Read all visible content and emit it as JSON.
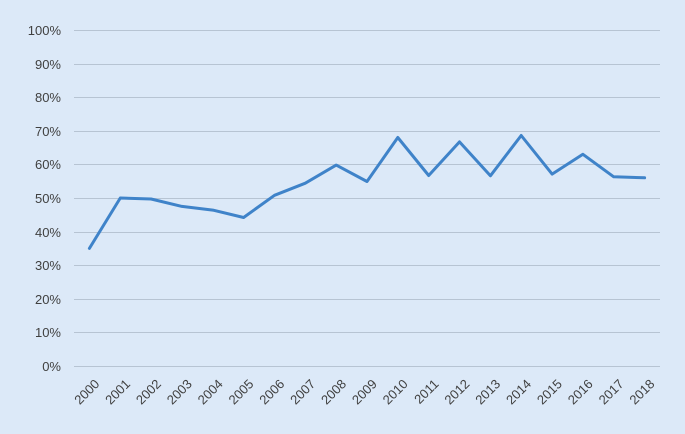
{
  "chart_data": {
    "type": "line",
    "x": [
      "2000",
      "2001",
      "2002",
      "2003",
      "2004",
      "2005",
      "2006",
      "2007",
      "2008",
      "2009",
      "2010",
      "2011",
      "2012",
      "2013",
      "2014",
      "2015",
      "2016",
      "2017",
      "2018"
    ],
    "series": [
      {
        "values": [
          35,
          50,
          49.7,
          47.5,
          46.4,
          44.2,
          50.8,
          54.4,
          59.8,
          54.9,
          68,
          56.7,
          66.7,
          56.6,
          68.6,
          57.1,
          63,
          56.3,
          56
        ]
      }
    ],
    "ylim": [
      0,
      100
    ],
    "y_ticks": [
      "0%",
      "10%",
      "20%",
      "30%",
      "40%",
      "50%",
      "60%",
      "70%",
      "80%",
      "90%",
      "100%"
    ],
    "y_tick_values": [
      0,
      10,
      20,
      30,
      40,
      50,
      60,
      70,
      80,
      90,
      100
    ],
    "title": "",
    "xlabel": "",
    "ylabel": "",
    "grid": true,
    "legend": "none",
    "colors": {
      "background": "#dce9f8",
      "line": "#3f83c9",
      "grid": "#b7c4d3",
      "text": "#404040"
    }
  }
}
